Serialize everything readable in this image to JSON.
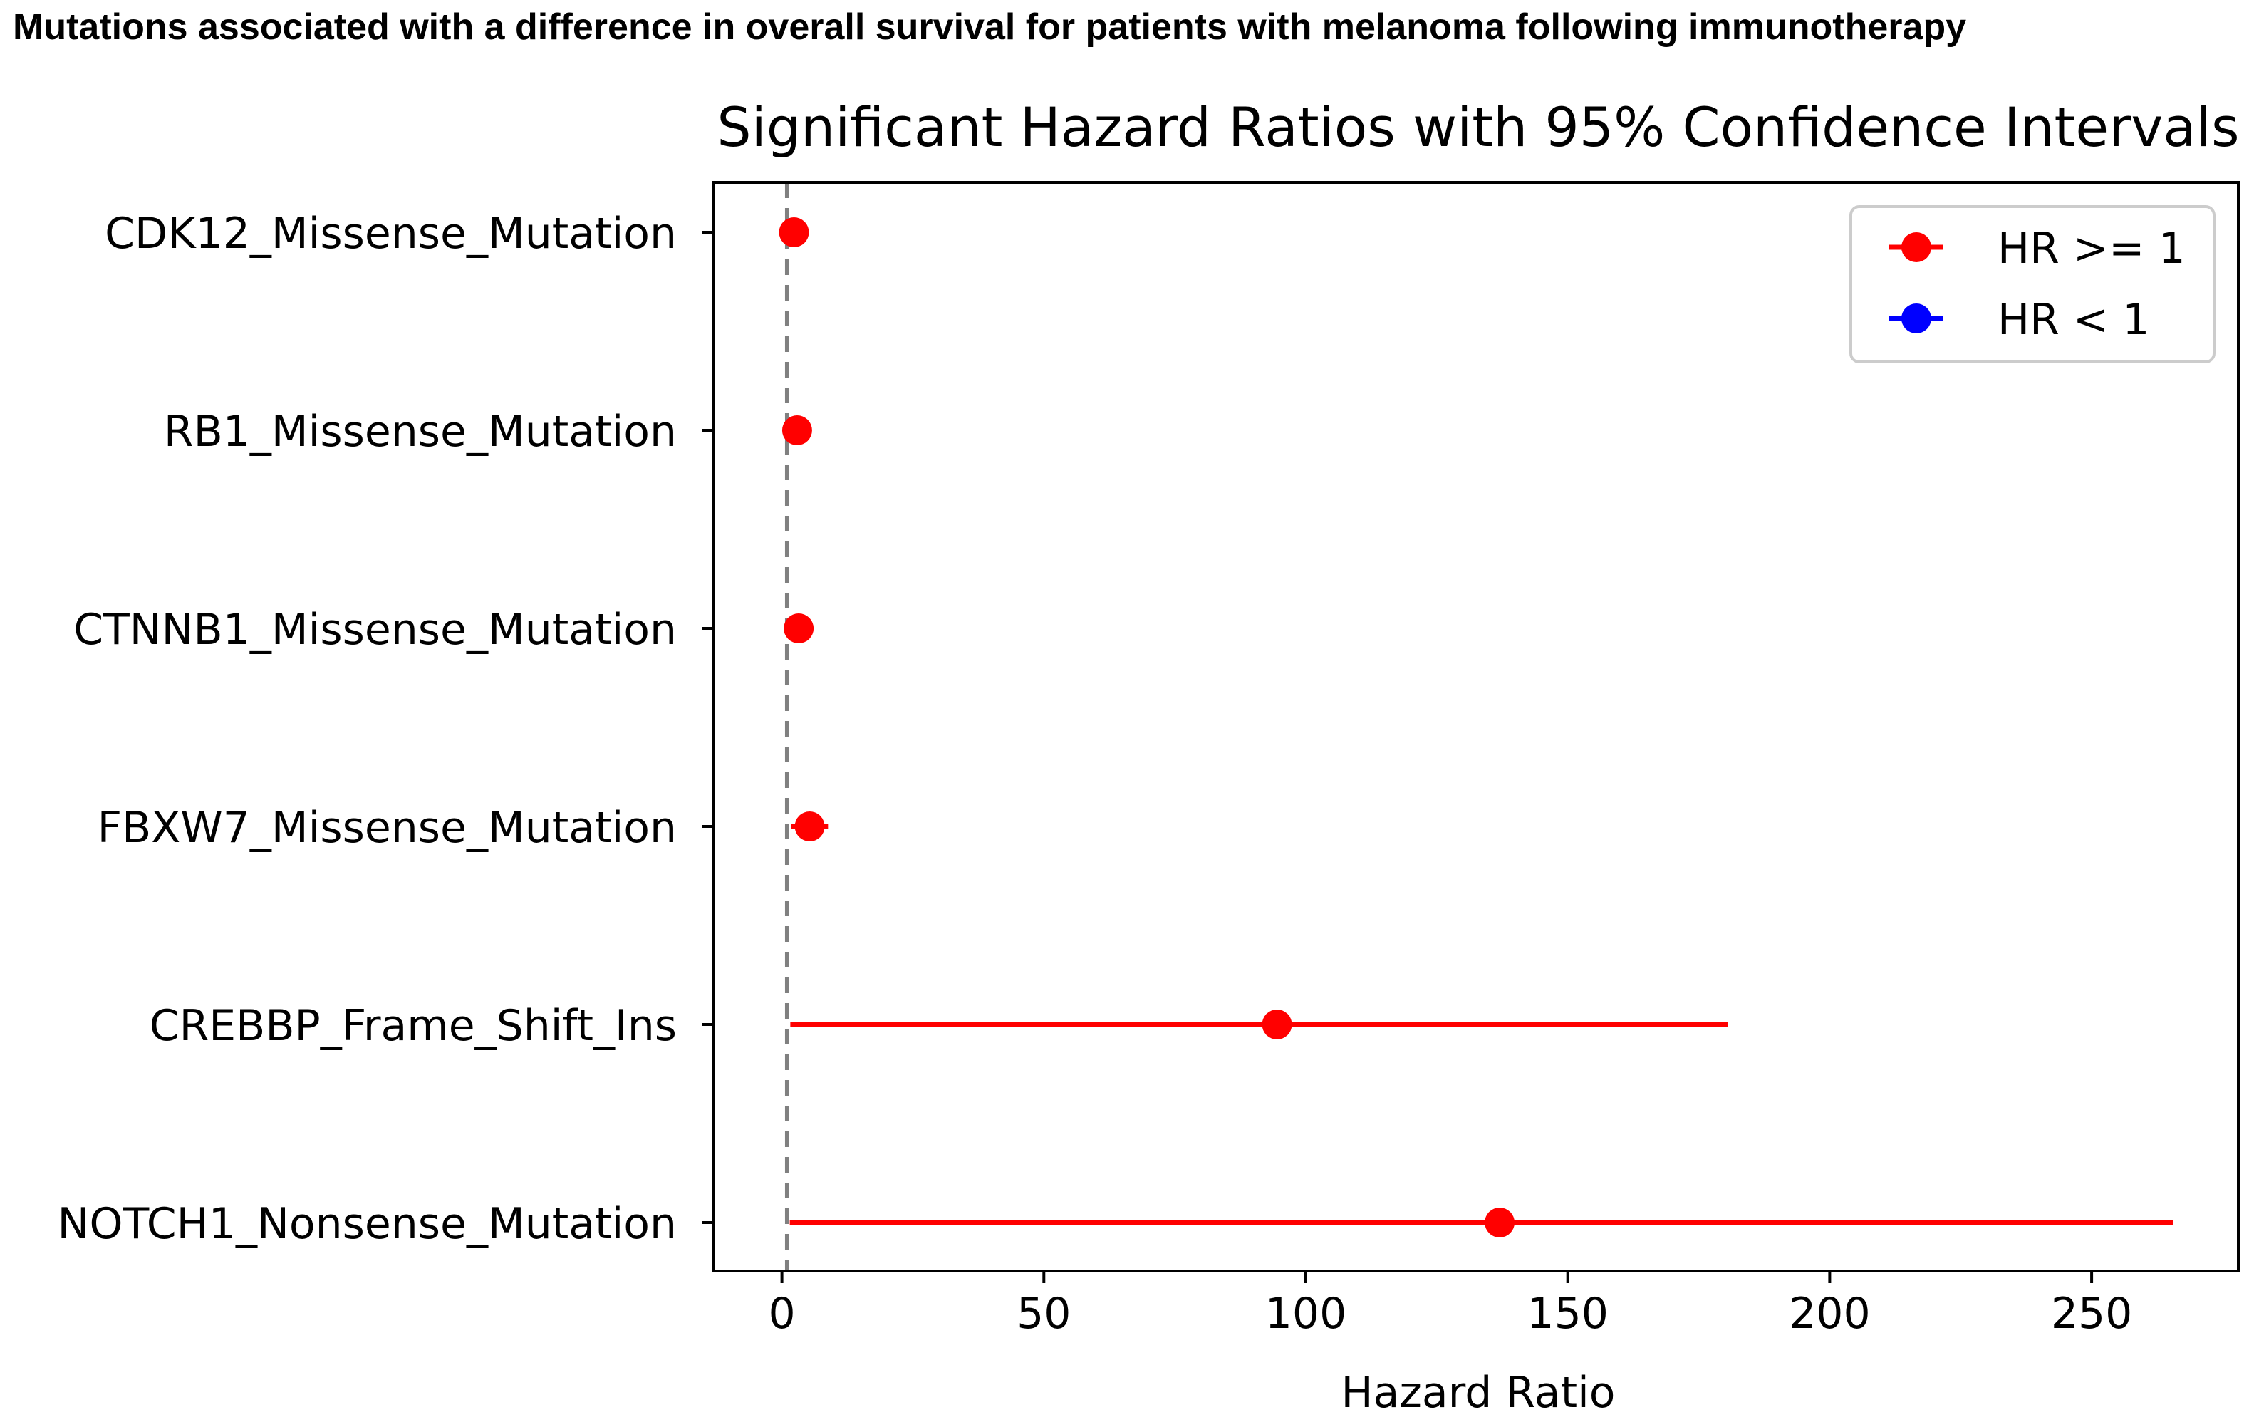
{
  "figure_title": "Mutations associated with a difference in overall survival for patients with melanoma following immunotherapy",
  "chart_data": {
    "type": "scatter",
    "title": "Significant Hazard Ratios with 95% Confidence Intervals",
    "xlabel": "Hazard Ratio",
    "ylabel": "",
    "xlim": [
      -13,
      278
    ],
    "xticks": [
      0,
      50,
      100,
      150,
      200,
      250
    ],
    "reference_line": 1,
    "grid": false,
    "legend_position": "top-right",
    "legend": [
      {
        "label": "HR >= 1",
        "color": "#ff0000"
      },
      {
        "label": "HR < 1",
        "color": "#0000ff"
      }
    ],
    "categories": [
      "CDK12_Missense_Mutation",
      "RB1_Missense_Mutation",
      "CTNNB1_Missense_Mutation",
      "FBXW7_Missense_Mutation",
      "CREBBP_Frame_Shift_Ins",
      "NOTCH1_Nonsense_Mutation"
    ],
    "hr": [
      2.3,
      2.9,
      3.2,
      5.3,
      94.5,
      137
    ],
    "ci_lower": [
      1.5,
      1.6,
      1.7,
      1.8,
      1.6,
      1.5
    ],
    "ci_upper": [
      3.0,
      4.0,
      4.5,
      8.8,
      180.5,
      265.5
    ]
  }
}
